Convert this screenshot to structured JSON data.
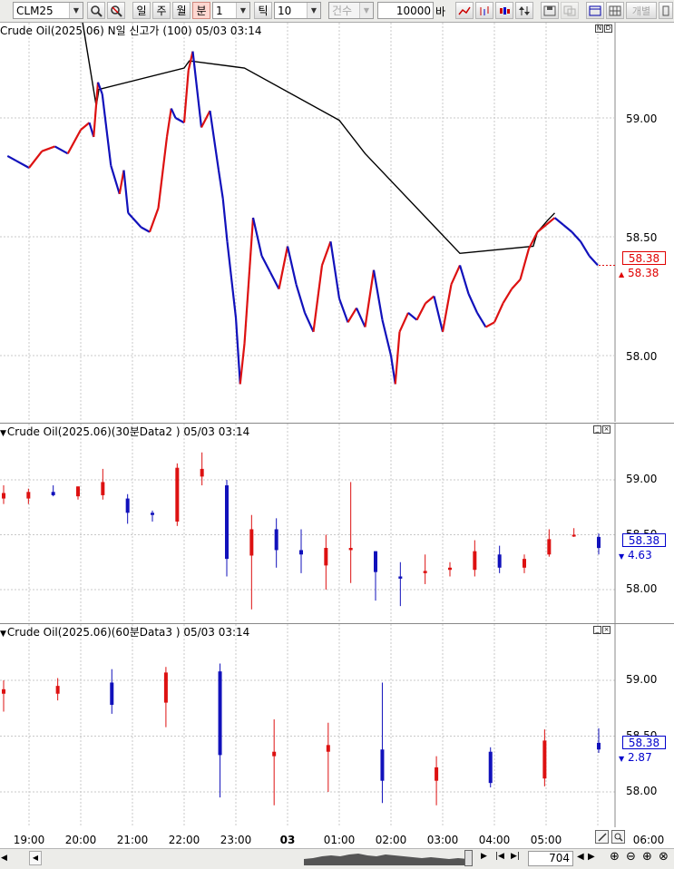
{
  "toolbar": {
    "symbol": "CLM25",
    "period_day": "일",
    "period_week": "주",
    "period_month": "월",
    "period_minute": "분",
    "period_value": "1",
    "tick_label": "틱",
    "tick_value": "10",
    "count_label": "건수",
    "bars_value": "10000",
    "bars_unit": "바",
    "right_label": "개별",
    "accent_color": "#ffd7d0"
  },
  "panels": [
    {
      "title": "Crude Oil(2025.06) N일 신고가  (100) 05/03 03:14",
      "y_ticks": [
        "59.00",
        "58.50",
        "58.00"
      ],
      "last_value": "58.38",
      "sub_value": "58.38",
      "sub_arrow": "▲",
      "box_bg": "#ffffff",
      "box_color": "#e00000",
      "sub_color": "#e00000"
    },
    {
      "title": "Crude Oil(2025.06)(30분Data2 ) 05/03 03:14",
      "y_ticks": [
        "59.00",
        "58.50",
        "58.00"
      ],
      "last_value": "58.38",
      "sub_value": "4.63",
      "sub_arrow": "▼",
      "box_bg": "#ffffff",
      "box_color": "#0000cc",
      "sub_color": "#0000cc"
    },
    {
      "title": "Crude Oil(2025.06)(60분Data3 ) 05/03 03:14",
      "y_ticks": [
        "59.00",
        "58.50",
        "58.00"
      ],
      "last_value": "58.38",
      "sub_value": "2.87",
      "sub_arrow": "▼",
      "box_bg": "#ffffff",
      "box_color": "#0000cc",
      "sub_color": "#0000cc"
    }
  ],
  "x_axis": {
    "labels": [
      "19:00",
      "20:00",
      "21:00",
      "22:00",
      "23:00",
      "03",
      "01:00",
      "02:00",
      "03:00",
      "04:00",
      "05:00",
      "06:00"
    ]
  },
  "scroll": {
    "count": "704"
  },
  "chart_data": [
    {
      "type": "line",
      "title": "Crude Oil(2025.06) N일 신고가  (100) 05/03 03:14",
      "x": [
        "18:35",
        "18:45",
        "19:00",
        "19:15",
        "19:30",
        "19:45",
        "20:00",
        "20:10",
        "20:15",
        "20:20",
        "20:25",
        "20:35",
        "20:45",
        "20:50",
        "20:55",
        "21:00",
        "21:10",
        "21:20",
        "21:30",
        "21:40",
        "21:45",
        "21:50",
        "22:00",
        "22:05",
        "22:10",
        "22:20",
        "22:30",
        "22:40",
        "22:45",
        "22:50",
        "23:00",
        "23:05",
        "23:10",
        "23:20",
        "23:30",
        "23:40",
        "23:50",
        "00:00",
        "00:10",
        "00:20",
        "00:30",
        "00:40",
        "00:50",
        "01:00",
        "01:10",
        "01:20",
        "01:30",
        "01:40",
        "01:50",
        "02:00",
        "02:05",
        "02:10",
        "02:20",
        "02:30",
        "02:40",
        "02:50",
        "03:00",
        "03:10",
        "03:20",
        "03:30",
        "03:40",
        "03:50",
        "04:00",
        "04:10",
        "04:20",
        "04:30",
        "04:40",
        "04:50",
        "05:00",
        "05:10",
        "05:20",
        "05:30",
        "05:40",
        "05:50",
        "06:00"
      ],
      "series": [
        {
          "values": [
            58.84,
            58.82,
            58.79,
            58.86,
            58.88,
            58.85,
            58.95,
            58.98,
            58.92,
            59.15,
            59.1,
            58.8,
            58.68,
            58.78,
            58.6,
            58.58,
            58.54,
            58.52,
            58.62,
            58.92,
            59.04,
            59.0,
            58.98,
            59.2,
            59.28,
            58.96,
            59.03,
            58.78,
            58.66,
            58.48,
            58.16,
            57.88,
            58.05,
            58.58,
            58.42,
            58.35,
            58.28,
            58.46,
            58.3,
            58.18,
            58.1,
            58.38,
            58.48,
            58.24,
            58.14,
            58.2,
            58.12,
            58.36,
            58.15,
            58.0,
            57.88,
            58.1,
            58.18,
            58.15,
            58.22,
            58.25,
            58.1,
            58.3,
            58.38,
            58.26,
            58.18,
            58.12,
            58.14,
            58.22,
            58.28,
            58.32,
            58.45,
            58.52,
            58.55,
            58.58,
            58.55,
            58.52,
            58.48,
            58.42,
            58.38
          ]
        }
      ],
      "reference_line": {
        "x": [
          "18:50",
          "20:00",
          "20:18",
          "20:21",
          "22:00",
          "22:06",
          "23:10",
          "01:00",
          "01:30",
          "03:20",
          "04:45",
          "04:50",
          "05:02",
          "05:10"
        ],
        "values": [
          59.45,
          59.45,
          59.05,
          59.12,
          59.21,
          59.24,
          59.21,
          58.99,
          58.85,
          58.43,
          58.46,
          58.52,
          58.57,
          58.6
        ]
      },
      "ylim": [
        57.7,
        59.45
      ],
      "last": 58.38
    },
    {
      "type": "bar",
      "title": "Crude Oil(2025.06)(30분Data2 ) 05/03 03:14",
      "series": [
        {
          "name": "",
          "values": [
            {
              "x": "19:00",
              "o": 58.83,
              "h": 58.95,
              "l": 58.78,
              "c": 58.88
            },
            {
              "x": "19:30",
              "o": 58.83,
              "h": 58.92,
              "l": 58.78,
              "c": 58.89
            },
            {
              "x": "20:00",
              "o": 58.89,
              "h": 58.95,
              "l": 58.85,
              "c": 58.86
            },
            {
              "x": "20:30",
              "o": 58.85,
              "h": 58.94,
              "l": 58.82,
              "c": 58.94
            },
            {
              "x": "21:00",
              "o": 58.86,
              "h": 59.1,
              "l": 58.82,
              "c": 58.98
            },
            {
              "x": "21:30",
              "o": 58.83,
              "h": 58.87,
              "l": 58.6,
              "c": 58.7
            },
            {
              "x": "22:00",
              "o": 58.7,
              "h": 58.72,
              "l": 58.62,
              "c": 58.68
            },
            {
              "x": "22:30",
              "o": 58.62,
              "h": 59.15,
              "l": 58.58,
              "c": 59.11
            },
            {
              "x": "23:00",
              "o": 59.03,
              "h": 59.25,
              "l": 58.95,
              "c": 59.1
            },
            {
              "x": "23:30",
              "o": 58.95,
              "h": 59.0,
              "l": 58.12,
              "c": 58.28
            },
            {
              "x": "00:00",
              "o": 58.31,
              "h": 58.68,
              "l": 57.82,
              "c": 58.55
            },
            {
              "x": "00:30",
              "o": 58.55,
              "h": 58.65,
              "l": 58.2,
              "c": 58.36
            },
            {
              "x": "01:00",
              "o": 58.36,
              "h": 58.55,
              "l": 58.15,
              "c": 58.32
            },
            {
              "x": "01:30",
              "o": 58.22,
              "h": 58.5,
              "l": 58.0,
              "c": 58.38
            },
            {
              "x": "02:00",
              "o": 58.36,
              "h": 58.98,
              "l": 58.06,
              "c": 58.38
            },
            {
              "x": "02:30",
              "o": 58.35,
              "h": 58.35,
              "l": 57.9,
              "c": 58.16
            },
            {
              "x": "03:00",
              "o": 58.12,
              "h": 58.25,
              "l": 57.85,
              "c": 58.1
            },
            {
              "x": "03:30",
              "o": 58.15,
              "h": 58.32,
              "l": 58.05,
              "c": 58.17
            },
            {
              "x": "04:00",
              "o": 58.18,
              "h": 58.25,
              "l": 58.12,
              "c": 58.2
            },
            {
              "x": "04:30",
              "o": 58.18,
              "h": 58.45,
              "l": 58.12,
              "c": 58.35
            },
            {
              "x": "05:00",
              "o": 58.32,
              "h": 58.4,
              "l": 58.15,
              "c": 58.2
            },
            {
              "x": "05:30",
              "o": 58.2,
              "h": 58.32,
              "l": 58.15,
              "c": 58.28
            },
            {
              "x": "06:00",
              "o": 58.32,
              "h": 58.55,
              "l": 58.3,
              "c": 58.46
            },
            {
              "x": "06:30",
              "o": 58.49,
              "h": 58.56,
              "l": 58.48,
              "c": 58.5
            },
            {
              "x": "07:00",
              "o": 58.48,
              "h": 58.51,
              "l": 58.32,
              "c": 58.38
            }
          ]
        }
      ],
      "ylim": [
        57.7,
        59.45
      ],
      "last": 58.38,
      "change": 4.63
    },
    {
      "type": "bar",
      "title": "Crude Oil(2025.06)(60분Data3 ) 05/03 03:14",
      "series": [
        {
          "name": "",
          "values": [
            {
              "x": "19:00",
              "o": 58.88,
              "h": 59.0,
              "l": 58.72,
              "c": 58.92
            },
            {
              "x": "20:00",
              "o": 58.88,
              "h": 59.02,
              "l": 58.82,
              "c": 58.95
            },
            {
              "x": "21:00",
              "o": 58.98,
              "h": 59.1,
              "l": 58.7,
              "c": 58.78
            },
            {
              "x": "22:00",
              "o": 58.8,
              "h": 59.12,
              "l": 58.58,
              "c": 59.07
            },
            {
              "x": "23:00",
              "o": 59.08,
              "h": 59.15,
              "l": 57.95,
              "c": 58.33
            },
            {
              "x": "00:00",
              "o": 58.32,
              "h": 58.65,
              "l": 57.88,
              "c": 58.36
            },
            {
              "x": "01:00",
              "o": 58.36,
              "h": 58.62,
              "l": 58.0,
              "c": 58.42
            },
            {
              "x": "02:00",
              "o": 58.38,
              "h": 58.98,
              "l": 57.9,
              "c": 58.1
            },
            {
              "x": "03:00",
              "o": 58.1,
              "h": 58.32,
              "l": 57.88,
              "c": 58.22
            },
            {
              "x": "04:00",
              "o": 58.36,
              "h": 58.4,
              "l": 58.04,
              "c": 58.08
            },
            {
              "x": "05:00",
              "o": 58.12,
              "h": 58.56,
              "l": 58.05,
              "c": 58.46
            },
            {
              "x": "06:00",
              "o": 58.44,
              "h": 58.57,
              "l": 58.35,
              "c": 58.38
            }
          ]
        }
      ],
      "ylim": [
        57.7,
        59.45
      ],
      "last": 58.38,
      "change": 2.87
    }
  ]
}
